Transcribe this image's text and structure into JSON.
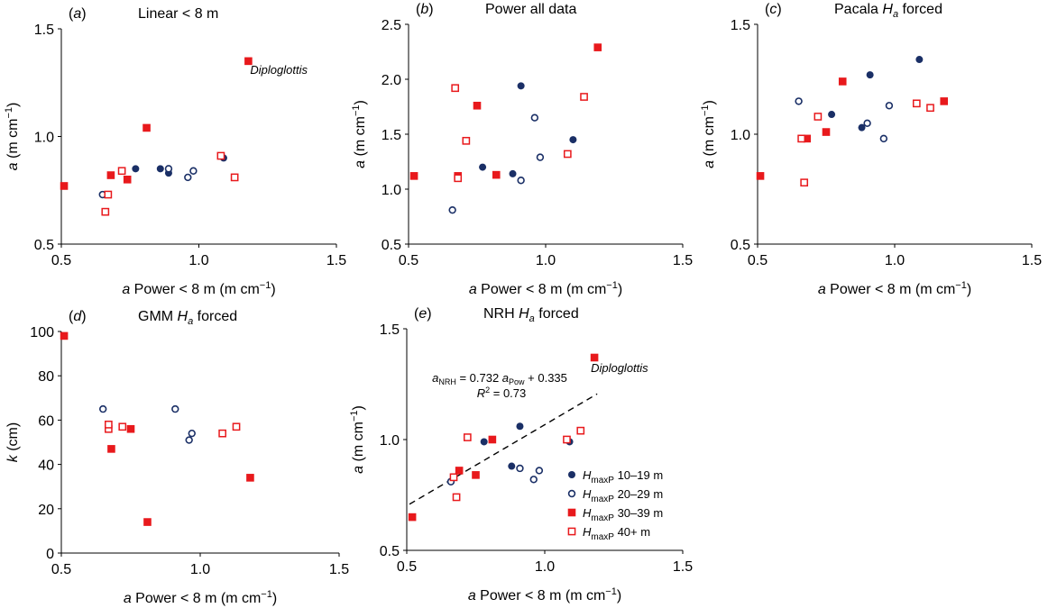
{
  "colors": {
    "navy": "#1a2f66",
    "red": "#e8191c",
    "axis": "#000000",
    "trend": "#000000"
  },
  "legend": [
    {
      "series": "h1",
      "prefix": "H",
      "sub": "maxP",
      "suffix": " 10–19 m"
    },
    {
      "series": "h2",
      "prefix": "H",
      "sub": "maxP",
      "suffix": " 20–29 m"
    },
    {
      "series": "h3",
      "prefix": "H",
      "sub": "maxP",
      "suffix": " 30–39 m"
    },
    {
      "series": "h4",
      "prefix": "H",
      "sub": "maxP",
      "suffix": " 40+ m"
    }
  ],
  "chart_data": [
    {
      "type": "scatter",
      "panel": "(a)",
      "title": "Linear < 8 m",
      "xlabel": "a Power < 8 m (m cm−1)",
      "ylabel": "a (m cm−1)",
      "xlim": [
        0.5,
        1.5
      ],
      "ylim": [
        0.5,
        1.5
      ],
      "xticks": [
        "0.5",
        "1.0",
        "1.5"
      ],
      "yticks": [
        "0.5",
        "1.0",
        "1.5"
      ],
      "annotations": [
        {
          "text": "Diploglottis",
          "x": 1.18,
          "y": 1.35
        }
      ],
      "series": [
        {
          "key": "h1",
          "points": [
            [
              0.77,
              0.85
            ],
            [
              0.86,
              0.85
            ],
            [
              0.89,
              0.83
            ],
            [
              1.09,
              0.9
            ]
          ]
        },
        {
          "key": "h2",
          "points": [
            [
              0.65,
              0.73
            ],
            [
              0.89,
              0.85
            ],
            [
              0.96,
              0.81
            ],
            [
              0.98,
              0.84
            ]
          ]
        },
        {
          "key": "h3",
          "points": [
            [
              0.51,
              0.77
            ],
            [
              0.68,
              0.82
            ],
            [
              0.74,
              0.8
            ],
            [
              0.81,
              1.04
            ],
            [
              1.18,
              1.35
            ]
          ]
        },
        {
          "key": "h4",
          "points": [
            [
              0.66,
              0.65
            ],
            [
              0.67,
              0.73
            ],
            [
              0.72,
              0.84
            ],
            [
              1.08,
              0.91
            ],
            [
              1.13,
              0.81
            ]
          ]
        }
      ]
    },
    {
      "type": "scatter",
      "panel": "(b)",
      "title": "Power all data",
      "xlabel": "a Power < 8 m (m cm−1)",
      "ylabel": "a (m cm−1)",
      "xlim": [
        0.5,
        1.5
      ],
      "ylim": [
        0.5,
        2.5
      ],
      "xticks": [
        "0.5",
        "1.0",
        "1.5"
      ],
      "yticks": [
        "0.5",
        "1.0",
        "1.5",
        "2.0",
        "2.5"
      ],
      "series": [
        {
          "key": "h1",
          "points": [
            [
              0.77,
              1.2
            ],
            [
              0.88,
              1.14
            ],
            [
              0.91,
              1.94
            ],
            [
              1.1,
              1.45
            ]
          ]
        },
        {
          "key": "h2",
          "points": [
            [
              0.66,
              0.81
            ],
            [
              0.91,
              1.08
            ],
            [
              0.96,
              1.65
            ],
            [
              0.98,
              1.29
            ]
          ]
        },
        {
          "key": "h3",
          "points": [
            [
              0.52,
              1.12
            ],
            [
              0.68,
              1.12
            ],
            [
              0.75,
              1.76
            ],
            [
              0.82,
              1.13
            ],
            [
              1.19,
              2.29
            ]
          ]
        },
        {
          "key": "h4",
          "points": [
            [
              0.67,
              1.92
            ],
            [
              0.68,
              1.1
            ],
            [
              0.71,
              1.44
            ],
            [
              1.08,
              1.32
            ],
            [
              1.14,
              1.84
            ]
          ]
        }
      ]
    },
    {
      "type": "scatter",
      "panel": "(c)",
      "title": "Pacala Ha forced",
      "xlabel": "a Power < 8 m (m cm−1)",
      "ylabel": "a (m cm−1)",
      "xlim": [
        0.5,
        1.5
      ],
      "ylim": [
        0.5,
        1.5
      ],
      "xticks": [
        "0.5",
        "1.0",
        "1.5"
      ],
      "yticks": [
        "0.5",
        "1.0",
        "1.5"
      ],
      "series": [
        {
          "key": "h1",
          "points": [
            [
              0.77,
              1.09
            ],
            [
              0.88,
              1.03
            ],
            [
              0.91,
              1.27
            ],
            [
              1.09,
              1.34
            ]
          ]
        },
        {
          "key": "h2",
          "points": [
            [
              0.65,
              1.15
            ],
            [
              0.9,
              1.05
            ],
            [
              0.96,
              0.98
            ],
            [
              0.98,
              1.13
            ]
          ]
        },
        {
          "key": "h3",
          "points": [
            [
              0.51,
              0.81
            ],
            [
              0.68,
              0.98
            ],
            [
              0.75,
              1.01
            ],
            [
              0.81,
              1.24
            ],
            [
              1.18,
              1.15
            ]
          ]
        },
        {
          "key": "h4",
          "points": [
            [
              0.66,
              0.98
            ],
            [
              0.67,
              0.78
            ],
            [
              0.72,
              1.08
            ],
            [
              1.08,
              1.14
            ],
            [
              1.13,
              1.12
            ]
          ]
        }
      ]
    },
    {
      "type": "scatter",
      "panel": "(d)",
      "title": "GMM Ha forced",
      "xlabel": "a Power < 8 m (m cm−1)",
      "ylabel": "k (cm)",
      "xlim": [
        0.5,
        1.5
      ],
      "ylim": [
        0,
        100
      ],
      "xticks": [
        "0.5",
        "1.0",
        "1.5"
      ],
      "yticks": [
        "0",
        "20",
        "40",
        "60",
        "80",
        "100"
      ],
      "series": [
        {
          "key": "h2",
          "points": [
            [
              0.65,
              65
            ],
            [
              0.91,
              65
            ],
            [
              0.96,
              51
            ],
            [
              0.97,
              54
            ]
          ]
        },
        {
          "key": "h3",
          "points": [
            [
              0.51,
              98
            ],
            [
              0.68,
              47
            ],
            [
              0.75,
              56
            ],
            [
              0.81,
              14
            ],
            [
              1.18,
              34
            ]
          ]
        },
        {
          "key": "h4",
          "points": [
            [
              0.67,
              56
            ],
            [
              0.67,
              58
            ],
            [
              0.72,
              57
            ],
            [
              1.08,
              54
            ],
            [
              1.13,
              57
            ]
          ]
        }
      ]
    },
    {
      "type": "scatter",
      "panel": "(e)",
      "title": "NRH Ha forced",
      "xlabel": "a Power < 8 m (m cm−1)",
      "ylabel": "a (m cm−1)",
      "xlim": [
        0.5,
        1.5
      ],
      "ylim": [
        0.5,
        1.5
      ],
      "xticks": [
        "0.5",
        "1.0",
        "1.5"
      ],
      "yticks": [
        "0.5",
        "1.0",
        "1.5"
      ],
      "annotations": [
        {
          "text": "Diploglottis",
          "x": 1.18,
          "y": 1.37
        }
      ],
      "trendline": {
        "slope": 0.732,
        "intercept": 0.335,
        "x_range": [
          0.51,
          1.19
        ],
        "equation": "aNRH = 0.732 aPow + 0.335",
        "r2": "R2 = 0.73"
      },
      "series": [
        {
          "key": "h1",
          "points": [
            [
              0.78,
              0.99
            ],
            [
              0.88,
              0.88
            ],
            [
              0.91,
              1.06
            ],
            [
              1.09,
              0.99
            ]
          ]
        },
        {
          "key": "h2",
          "points": [
            [
              0.66,
              0.81
            ],
            [
              0.91,
              0.87
            ],
            [
              0.96,
              0.82
            ],
            [
              0.98,
              0.86
            ]
          ]
        },
        {
          "key": "h3",
          "points": [
            [
              0.52,
              0.65
            ],
            [
              0.69,
              0.86
            ],
            [
              0.75,
              0.84
            ],
            [
              0.81,
              1.0
            ],
            [
              1.18,
              1.37
            ]
          ]
        },
        {
          "key": "h4",
          "points": [
            [
              0.67,
              0.83
            ],
            [
              0.68,
              0.74
            ],
            [
              0.72,
              1.01
            ],
            [
              1.08,
              1.0
            ],
            [
              1.13,
              1.04
            ]
          ]
        }
      ]
    }
  ]
}
